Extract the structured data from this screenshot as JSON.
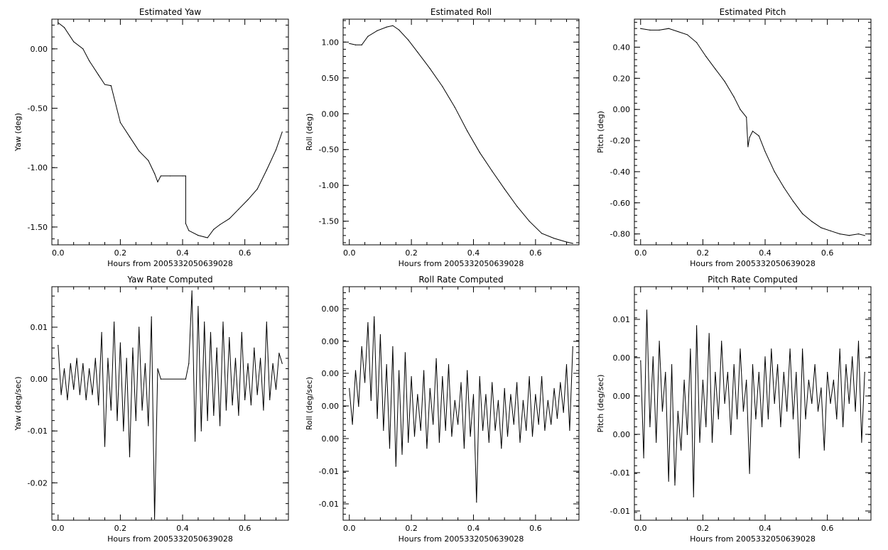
{
  "chart_data": [
    {
      "type": "line",
      "title": "Estimated Yaw",
      "xlabel": "Hours from 2005332050639028",
      "ylabel": "Yaw (deg)",
      "xlim": [
        -0.02,
        0.74
      ],
      "ylim": [
        -1.65,
        0.25
      ],
      "xticks": [
        0.0,
        0.2,
        0.4,
        0.6
      ],
      "xtick_labels": [
        "0.0",
        "0.2",
        "0.4",
        "0.6"
      ],
      "yticks": [
        0.0,
        -0.5,
        -1.0,
        -1.5
      ],
      "ytick_labels": [
        "0.00",
        "-0.50",
        "-1.00",
        "-1.50"
      ],
      "series": [
        {
          "x": [
            0.0,
            0.02,
            0.05,
            0.08,
            0.1,
            0.13,
            0.15,
            0.17,
            0.2,
            0.23,
            0.26,
            0.29,
            0.31,
            0.32,
            0.33,
            0.36,
            0.4,
            0.41,
            0.41,
            0.42,
            0.45,
            0.48,
            0.5,
            0.52,
            0.55,
            0.58,
            0.61,
            0.64,
            0.67,
            0.7,
            0.72
          ],
          "y": [
            0.22,
            0.18,
            0.06,
            0.0,
            -0.1,
            -0.22,
            -0.3,
            -0.31,
            -0.62,
            -0.74,
            -0.86,
            -0.94,
            -1.05,
            -1.12,
            -1.07,
            -1.07,
            -1.07,
            -1.07,
            -1.47,
            -1.53,
            -1.57,
            -1.59,
            -1.52,
            -1.48,
            -1.43,
            -1.35,
            -1.27,
            -1.18,
            -1.02,
            -0.85,
            -0.7
          ]
        }
      ]
    },
    {
      "type": "line",
      "title": "Estimated Roll",
      "xlabel": "Hours from 2005332050639028",
      "ylabel": "Roll (deg)",
      "xlim": [
        -0.02,
        0.74
      ],
      "ylim": [
        -1.83,
        1.32
      ],
      "xticks": [
        0.0,
        0.2,
        0.4,
        0.6
      ],
      "xtick_labels": [
        "0.0",
        "0.2",
        "0.4",
        "0.6"
      ],
      "yticks": [
        1.0,
        0.5,
        0.0,
        -0.5,
        -1.0,
        -1.5
      ],
      "ytick_labels": [
        "1.00",
        "0.50",
        "0.00",
        "-0.50",
        "-1.00",
        "-1.50"
      ],
      "series": [
        {
          "x": [
            0.0,
            0.02,
            0.04,
            0.06,
            0.09,
            0.12,
            0.14,
            0.16,
            0.19,
            0.22,
            0.26,
            0.3,
            0.34,
            0.38,
            0.42,
            0.46,
            0.5,
            0.54,
            0.58,
            0.62,
            0.66,
            0.7,
            0.72
          ],
          "y": [
            0.98,
            0.96,
            0.96,
            1.08,
            1.16,
            1.21,
            1.23,
            1.17,
            1.03,
            0.86,
            0.63,
            0.38,
            0.09,
            -0.24,
            -0.54,
            -0.8,
            -1.05,
            -1.29,
            -1.5,
            -1.67,
            -1.74,
            -1.79,
            -1.81
          ]
        }
      ]
    },
    {
      "type": "line",
      "title": "Estimated Pitch",
      "xlabel": "Hours from 2005332050639028",
      "ylabel": "Pitch (deg)",
      "xlim": [
        -0.02,
        0.74
      ],
      "ylim": [
        -0.87,
        0.58
      ],
      "xticks": [
        0.0,
        0.2,
        0.4,
        0.6
      ],
      "xtick_labels": [
        "0.0",
        "0.2",
        "0.4",
        "0.6"
      ],
      "yticks": [
        0.4,
        0.2,
        0.0,
        -0.2,
        -0.4,
        -0.6,
        -0.8
      ],
      "ytick_labels": [
        "0.40",
        "0.20",
        "0.00",
        "-0.20",
        "-0.40",
        "-0.60",
        "-0.80"
      ],
      "series": [
        {
          "x": [
            0.0,
            0.03,
            0.06,
            0.09,
            0.12,
            0.15,
            0.18,
            0.21,
            0.24,
            0.27,
            0.3,
            0.32,
            0.34,
            0.345,
            0.35,
            0.36,
            0.38,
            0.4,
            0.43,
            0.46,
            0.49,
            0.52,
            0.55,
            0.58,
            0.61,
            0.64,
            0.67,
            0.7,
            0.72
          ],
          "y": [
            0.52,
            0.51,
            0.51,
            0.52,
            0.5,
            0.48,
            0.43,
            0.34,
            0.26,
            0.18,
            0.08,
            0.0,
            -0.05,
            -0.24,
            -0.18,
            -0.14,
            -0.17,
            -0.27,
            -0.4,
            -0.5,
            -0.59,
            -0.67,
            -0.72,
            -0.76,
            -0.78,
            -0.8,
            -0.81,
            -0.8,
            -0.81
          ]
        }
      ]
    },
    {
      "type": "line",
      "title": "Yaw Rate Computed",
      "xlabel": "Hours from 2005332050639028",
      "ylabel": "Yaw (deg/sec)",
      "xlim": [
        -0.02,
        0.74
      ],
      "ylim": [
        -0.0272,
        0.0178
      ],
      "xticks": [
        0.0,
        0.2,
        0.4,
        0.6
      ],
      "xtick_labels": [
        "0.0",
        "0.2",
        "0.4",
        "0.6"
      ],
      "yticks": [
        0.01,
        0.0,
        -0.01,
        -0.02
      ],
      "ytick_labels": [
        "0.01",
        "0.00",
        "-0.01",
        "-0.02"
      ],
      "series": [
        {
          "x": [
            0.0,
            0.01,
            0.02,
            0.03,
            0.04,
            0.05,
            0.06,
            0.07,
            0.08,
            0.09,
            0.1,
            0.11,
            0.12,
            0.13,
            0.14,
            0.15,
            0.16,
            0.17,
            0.18,
            0.19,
            0.2,
            0.21,
            0.22,
            0.23,
            0.24,
            0.25,
            0.26,
            0.27,
            0.28,
            0.29,
            0.3,
            0.31,
            0.32,
            0.33,
            0.41,
            0.42,
            0.43,
            0.44,
            0.45,
            0.46,
            0.47,
            0.48,
            0.49,
            0.5,
            0.51,
            0.52,
            0.53,
            0.54,
            0.55,
            0.56,
            0.57,
            0.58,
            0.59,
            0.6,
            0.61,
            0.62,
            0.63,
            0.64,
            0.65,
            0.66,
            0.67,
            0.68,
            0.69,
            0.7,
            0.71,
            0.72
          ],
          "y": [
            0.0065,
            -0.003,
            0.002,
            -0.004,
            0.003,
            -0.002,
            0.004,
            -0.003,
            0.003,
            -0.004,
            0.002,
            -0.003,
            0.004,
            -0.005,
            0.009,
            -0.013,
            0.004,
            -0.006,
            0.011,
            -0.008,
            0.007,
            -0.01,
            0.004,
            -0.015,
            0.006,
            -0.008,
            0.01,
            -0.006,
            0.003,
            -0.009,
            0.012,
            -0.027,
            0.002,
            0.0,
            0.0,
            0.003,
            0.017,
            -0.012,
            0.014,
            -0.01,
            0.011,
            -0.008,
            0.009,
            -0.007,
            0.006,
            -0.009,
            0.011,
            -0.006,
            0.008,
            -0.005,
            0.004,
            -0.007,
            0.009,
            -0.004,
            0.003,
            -0.005,
            0.006,
            -0.003,
            0.004,
            -0.006,
            0.011,
            -0.004,
            0.003,
            -0.002,
            0.005,
            0.003
          ]
        }
      ]
    },
    {
      "type": "line",
      "title": "Roll Rate Computed",
      "xlabel": "Hours from 2005332050639028",
      "ylabel": "Roll (deg/sec)",
      "xlim": [
        -0.02,
        0.74
      ],
      "ytick_values": [
        6,
        5,
        4,
        3,
        2,
        1,
        0
      ],
      "ylim": [
        -0.4,
        7.4
      ],
      "xticks": [
        0.0,
        0.2,
        0.4,
        0.6
      ],
      "xtick_labels": [
        "0.0",
        "0.2",
        "0.4",
        "0.6"
      ],
      "ytick_labels": [
        "0.00",
        "0.00",
        "0.00",
        "0.00",
        "0.00",
        "-0.01",
        "-0.01"
      ],
      "series": [
        {
          "x": [
            0.0,
            0.01,
            0.02,
            0.03,
            0.04,
            0.05,
            0.06,
            0.07,
            0.08,
            0.09,
            0.1,
            0.11,
            0.12,
            0.13,
            0.14,
            0.15,
            0.16,
            0.17,
            0.18,
            0.19,
            0.2,
            0.21,
            0.22,
            0.23,
            0.24,
            0.25,
            0.26,
            0.27,
            0.28,
            0.29,
            0.3,
            0.31,
            0.32,
            0.33,
            0.34,
            0.35,
            0.36,
            0.37,
            0.38,
            0.39,
            0.4,
            0.41,
            0.42,
            0.43,
            0.44,
            0.45,
            0.46,
            0.47,
            0.48,
            0.49,
            0.5,
            0.51,
            0.52,
            0.53,
            0.54,
            0.55,
            0.56,
            0.57,
            0.58,
            0.59,
            0.6,
            0.61,
            0.62,
            0.63,
            0.64,
            0.65,
            0.66,
            0.67,
            0.68,
            0.69,
            0.7,
            0.71,
            0.72
          ],
          "y": [
            4.0,
            2.8,
            4.6,
            3.4,
            5.4,
            4.2,
            6.2,
            3.6,
            6.4,
            3.0,
            5.8,
            2.6,
            4.8,
            2.0,
            5.4,
            1.4,
            4.6,
            1.8,
            5.2,
            2.2,
            4.4,
            2.4,
            3.8,
            2.6,
            4.6,
            2.0,
            4.0,
            2.8,
            5.0,
            2.2,
            4.4,
            2.6,
            4.8,
            2.4,
            3.6,
            2.8,
            4.2,
            2.0,
            4.6,
            2.4,
            3.8,
            0.2,
            4.4,
            2.6,
            3.8,
            2.2,
            4.2,
            2.6,
            3.6,
            2.0,
            4.0,
            2.4,
            3.8,
            2.8,
            4.2,
            2.2,
            3.6,
            2.6,
            4.4,
            2.4,
            3.8,
            2.8,
            4.4,
            2.6,
            3.6,
            2.8,
            4.0,
            3.0,
            4.2,
            3.2,
            4.8,
            2.6,
            5.4
          ]
        }
      ]
    },
    {
      "type": "line",
      "title": "Pitch Rate Computed",
      "xlabel": "Hours from 2005332050639028",
      "ylabel": "Pitch (deg/sec)",
      "xlim": [
        -0.02,
        0.74
      ],
      "ytick_values": [
        6,
        5,
        4,
        3,
        2,
        1
      ],
      "ylim": [
        0.6,
        6.6
      ],
      "xticks": [
        0.0,
        0.2,
        0.4,
        0.6
      ],
      "xtick_labels": [
        "0.0",
        "0.2",
        "0.4",
        "0.6"
      ],
      "ytick_labels": [
        "0.01",
        "0.00",
        "0.00",
        "0.00",
        "-0.01",
        "-0.01"
      ],
      "series": [
        {
          "x": [
            0.0,
            0.01,
            0.02,
            0.03,
            0.04,
            0.05,
            0.06,
            0.07,
            0.08,
            0.09,
            0.1,
            0.11,
            0.12,
            0.13,
            0.14,
            0.15,
            0.16,
            0.17,
            0.18,
            0.19,
            0.2,
            0.21,
            0.22,
            0.23,
            0.24,
            0.25,
            0.26,
            0.27,
            0.28,
            0.29,
            0.3,
            0.31,
            0.32,
            0.33,
            0.34,
            0.35,
            0.36,
            0.37,
            0.38,
            0.39,
            0.4,
            0.41,
            0.42,
            0.43,
            0.44,
            0.45,
            0.46,
            0.47,
            0.48,
            0.49,
            0.5,
            0.51,
            0.52,
            0.53,
            0.54,
            0.55,
            0.56,
            0.57,
            0.58,
            0.59,
            0.6,
            0.61,
            0.62,
            0.63,
            0.64,
            0.65,
            0.66,
            0.67,
            0.68,
            0.69,
            0.7,
            0.71,
            0.72
          ],
          "y": [
            4.7,
            2.2,
            6.0,
            3.0,
            4.8,
            2.6,
            5.2,
            3.4,
            4.4,
            1.6,
            4.6,
            1.5,
            3.4,
            2.4,
            4.2,
            2.8,
            5.0,
            1.2,
            5.6,
            2.6,
            4.2,
            3.0,
            5.4,
            2.6,
            4.4,
            3.2,
            5.2,
            3.6,
            4.4,
            2.8,
            4.6,
            3.2,
            5.0,
            3.4,
            4.2,
            1.8,
            4.6,
            3.2,
            4.4,
            3.0,
            4.8,
            3.2,
            5.0,
            3.6,
            4.6,
            3.0,
            4.4,
            3.4,
            5.0,
            3.2,
            4.4,
            2.2,
            5.0,
            3.2,
            4.2,
            3.6,
            4.6,
            3.4,
            4.0,
            2.4,
            4.4,
            3.6,
            4.2,
            3.2,
            5.0,
            3.0,
            4.6,
            3.6,
            4.8,
            3.4,
            5.2,
            2.6,
            4.4
          ]
        }
      ]
    }
  ]
}
